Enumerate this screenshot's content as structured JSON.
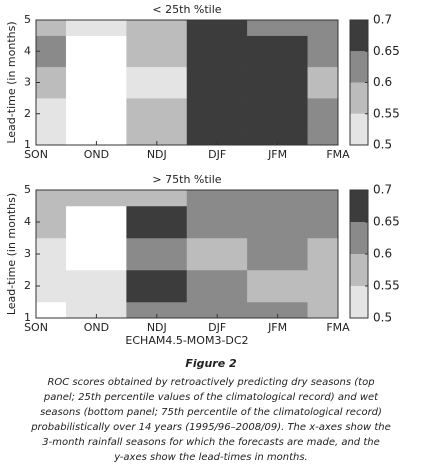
{
  "chart_data": [
    {
      "type": "contour",
      "title": "< 25th %tile",
      "ylabel": "Lead-time (in months)",
      "categories": [
        "SON",
        "OND",
        "NDJ",
        "DJF",
        "JFM",
        "FMA"
      ],
      "y": [
        1,
        2,
        3,
        4,
        5
      ],
      "ylim": [
        1,
        5
      ],
      "yticks": [
        1,
        2,
        3,
        4,
        5
      ],
      "z": [
        [
          0.52,
          0.45,
          0.55,
          0.7,
          0.7,
          0.62
        ],
        [
          0.53,
          0.45,
          0.55,
          0.68,
          0.7,
          0.62
        ],
        [
          0.55,
          0.45,
          0.5,
          0.66,
          0.7,
          0.55
        ],
        [
          0.62,
          0.45,
          0.55,
          0.65,
          0.72,
          0.6
        ],
        [
          0.55,
          0.5,
          0.55,
          0.68,
          0.62,
          0.6
        ]
      ],
      "clim": [
        0.5,
        0.7
      ],
      "cticks": [
        0.5,
        0.55,
        0.6,
        0.65,
        0.7
      ],
      "colors": [
        "#e4e4e4",
        "#bcbcbc",
        "#8a8a8a",
        "#3c3c3c"
      ]
    },
    {
      "type": "contour",
      "title": "> 75th %tile",
      "ylabel": "Lead-time (in months)",
      "xlabel": "ECHAM4.5-MOM3-DC2",
      "categories": [
        "SON",
        "OND",
        "NDJ",
        "DJF",
        "JFM",
        "FMA"
      ],
      "y": [
        1,
        2,
        3,
        4,
        5
      ],
      "ylim": [
        1,
        5
      ],
      "yticks": [
        1,
        2,
        3,
        4,
        5
      ],
      "z": [
        [
          0.45,
          0.52,
          0.6,
          0.6,
          0.6,
          0.55
        ],
        [
          0.5,
          0.5,
          0.66,
          0.6,
          0.58,
          0.55
        ],
        [
          0.52,
          0.45,
          0.6,
          0.55,
          0.6,
          0.58
        ],
        [
          0.55,
          0.45,
          0.7,
          0.62,
          0.6,
          0.6
        ],
        [
          0.55,
          0.55,
          0.55,
          0.6,
          0.6,
          0.6
        ]
      ],
      "clim": [
        0.5,
        0.7
      ],
      "cticks": [
        0.5,
        0.55,
        0.6,
        0.65,
        0.7
      ],
      "colors": [
        "#e4e4e4",
        "#bcbcbc",
        "#8a8a8a",
        "#3c3c3c"
      ]
    }
  ],
  "caption": {
    "title": "Figure 2",
    "lines": [
      "ROC scores obtained by retroactively predicting dry seasons (top",
      "panel; 25th percentile values of the climatological record) and wet",
      "seasons (bottom panel; 75th percentile of the climatological record)",
      "probabilistically over 14 years (1995/96–2008/09). The x-axes show the",
      "3-month rainfall seasons for which the forecasts are made, and the",
      "y-axes show the lead-times in months."
    ]
  }
}
